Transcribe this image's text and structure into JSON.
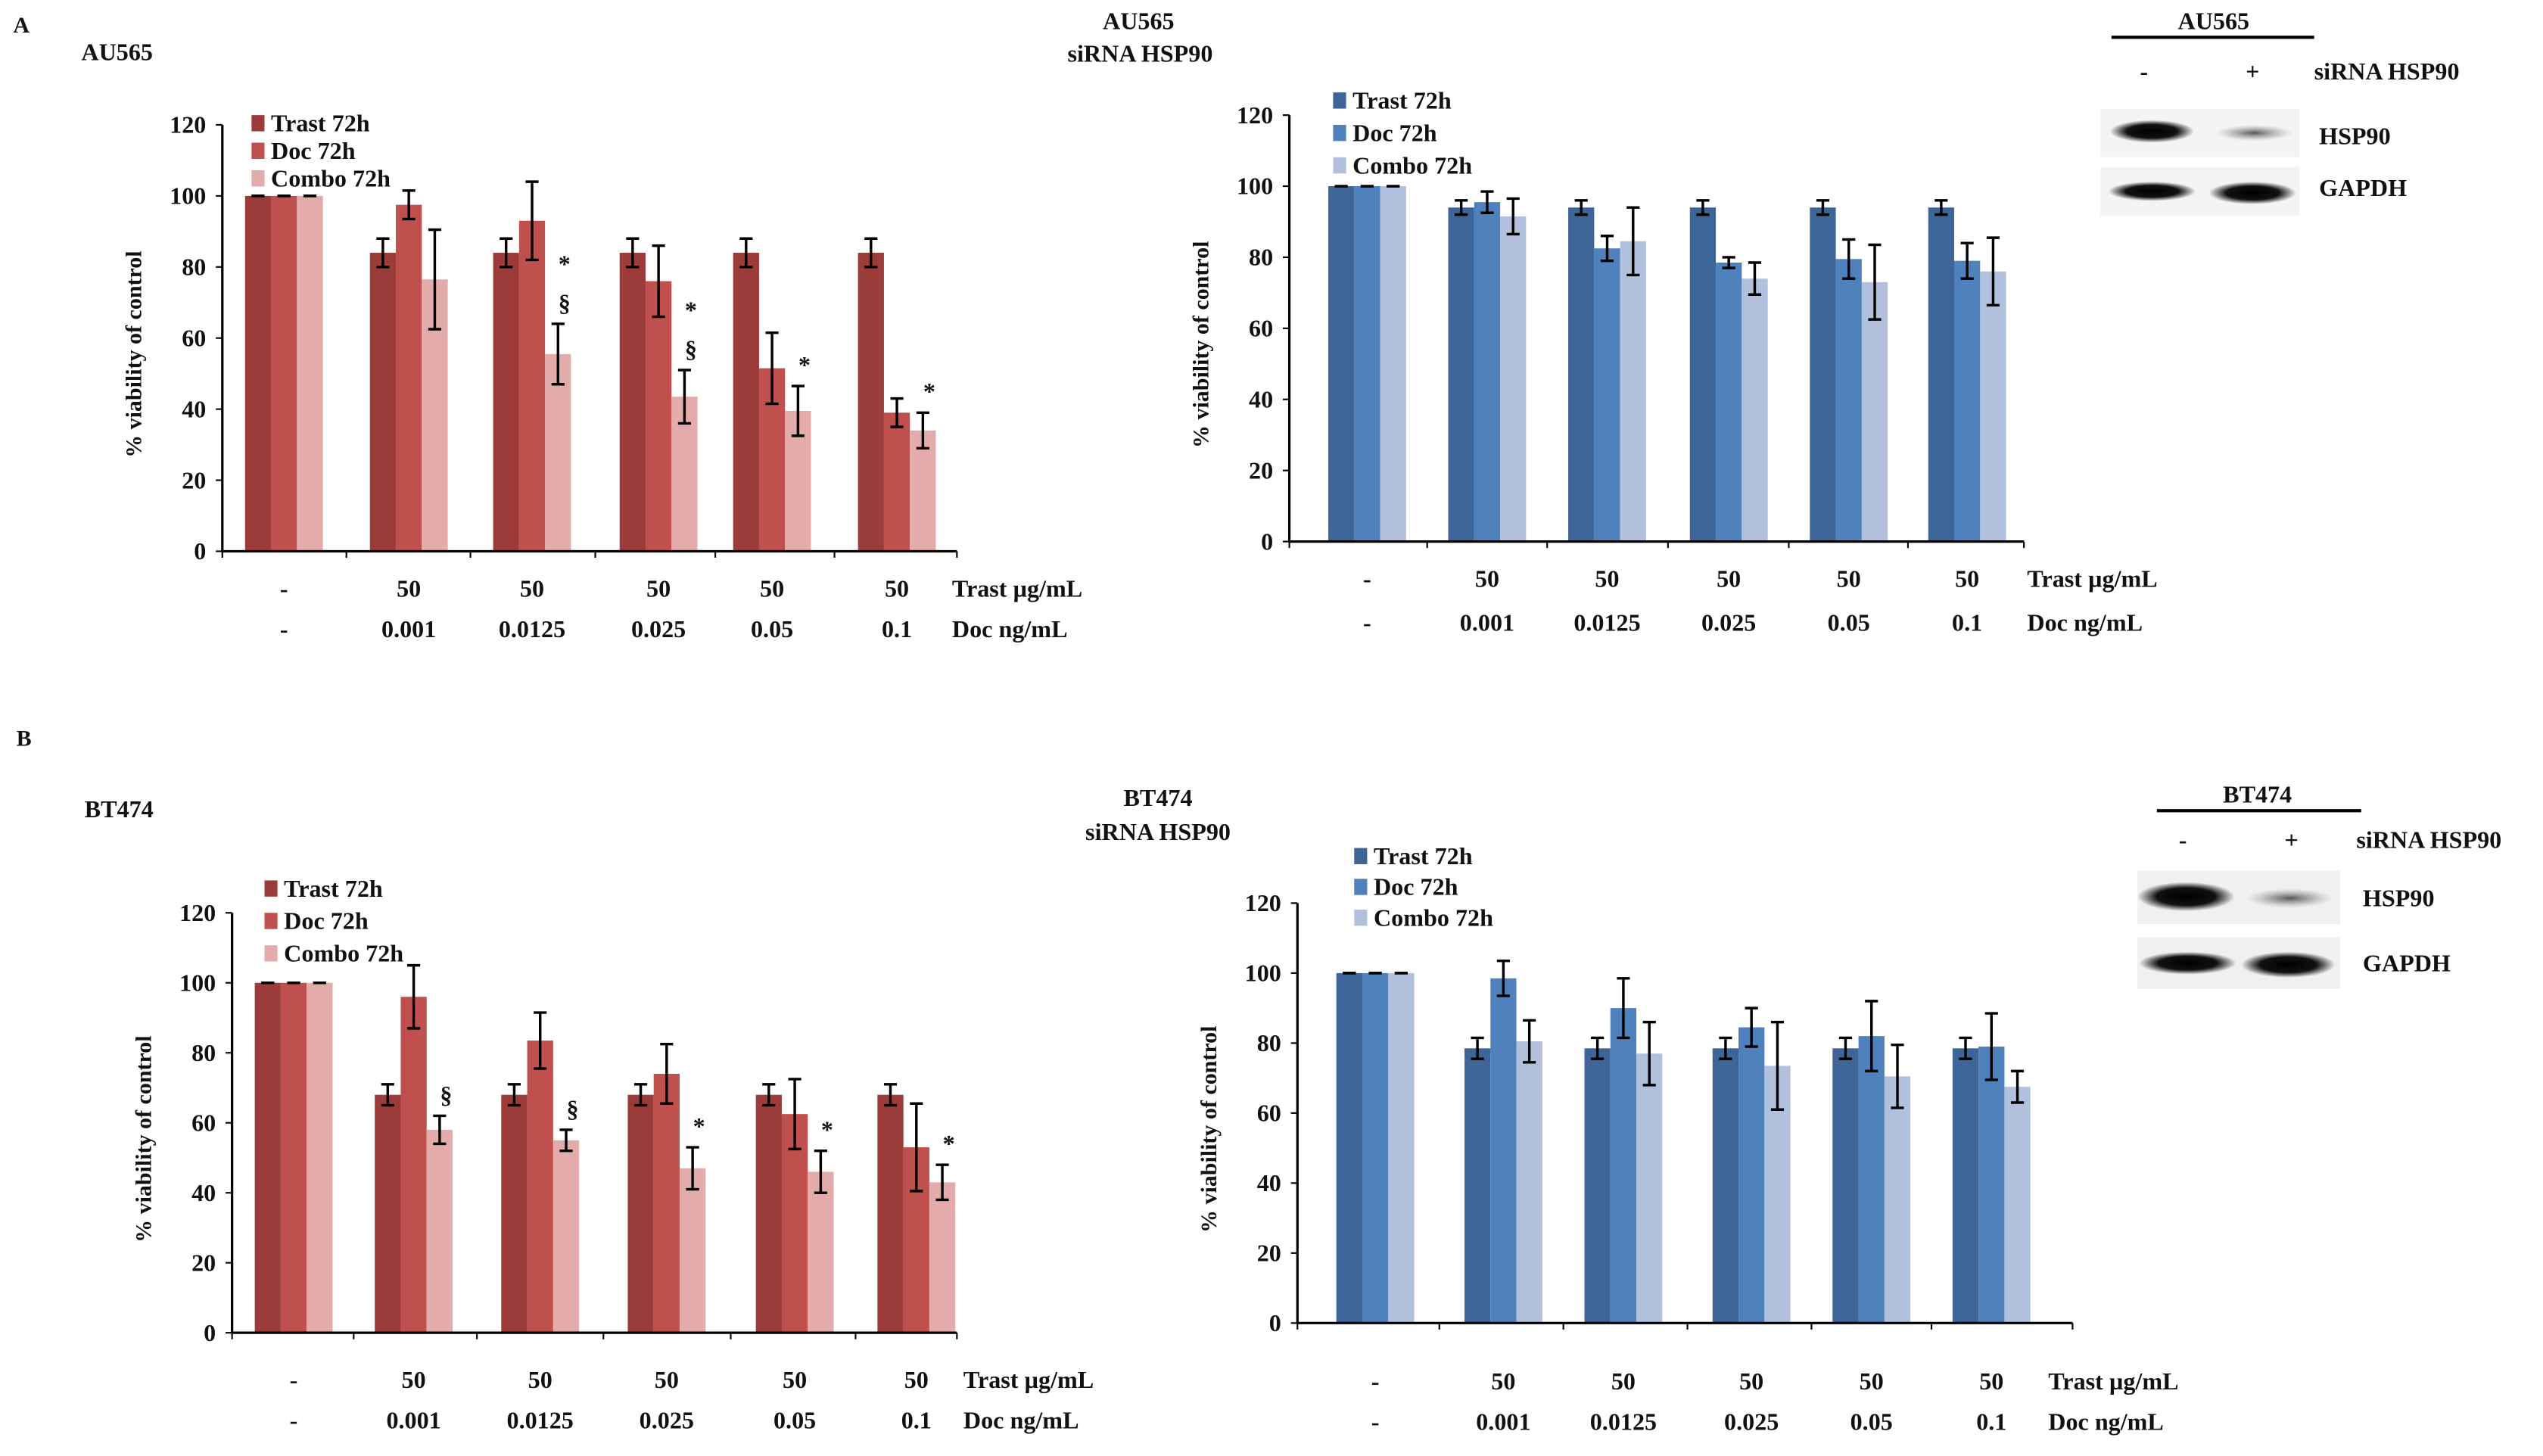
{
  "panels": {
    "A": {
      "letter": "A",
      "cell_line": "AU565",
      "center_title_1": "AU565",
      "center_title_2": "siRNA HSP90"
    },
    "B": {
      "letter": "B",
      "cell_line": "BT474",
      "center_title_1": "BT474",
      "center_title_2": "siRNA HSP90"
    }
  },
  "blots": [
    {
      "header": "AU565",
      "minus": "-",
      "plus": "+",
      "condition": "siRNA HSP90",
      "bands": [
        "HSP90",
        "GAPDH"
      ]
    },
    {
      "header": "BT474",
      "minus": "-",
      "plus": "+",
      "condition": "siRNA HSP90",
      "bands": [
        "HSP90",
        "GAPDH"
      ]
    }
  ],
  "colors": {
    "red": [
      "#9c3c3a",
      "#c0504d",
      "#e3abaa"
    ],
    "blue": [
      "#3e6597",
      "#4f81bd",
      "#b0c0dd"
    ]
  },
  "chart_data": [
    {
      "type": "bar",
      "id": "A-control",
      "palette": "red",
      "ylabel": "% viability of control",
      "ylim": [
        0,
        120
      ],
      "yticks": [
        0,
        20,
        40,
        60,
        80,
        100,
        120
      ],
      "row_labels": [
        "Trast µg/mL",
        "Doc ng/mL"
      ],
      "categories_trast": [
        "-",
        "50",
        "50",
        "50",
        "50",
        "50"
      ],
      "categories_doc": [
        "-",
        "0.001",
        "0.0125",
        "0.025",
        "0.05",
        "0.1"
      ],
      "series": [
        {
          "name": "Trast 72h",
          "values": [
            100,
            84,
            84,
            84,
            84,
            84
          ],
          "errors": [
            0,
            4,
            4,
            4,
            4,
            4
          ]
        },
        {
          "name": "Doc 72h",
          "values": [
            100,
            97.5,
            93,
            76,
            51.5,
            39
          ],
          "errors": [
            0,
            4,
            11,
            10,
            10,
            4
          ]
        },
        {
          "name": "Combo 72h",
          "values": [
            100,
            76.5,
            55.5,
            43.5,
            39.5,
            34
          ],
          "errors": [
            0,
            14,
            8.5,
            7.5,
            7,
            5
          ]
        }
      ],
      "annotations": [
        [],
        [],
        [
          "*",
          "§"
        ],
        [
          "*",
          "§"
        ],
        [
          "*"
        ],
        [
          "*"
        ]
      ]
    },
    {
      "type": "bar",
      "id": "A-siRNA",
      "palette": "blue",
      "ylabel": "% viability of control",
      "ylim": [
        0,
        120
      ],
      "yticks": [
        0,
        20,
        40,
        60,
        80,
        100,
        120
      ],
      "row_labels": [
        "Trast µg/mL",
        "Doc ng/mL"
      ],
      "categories_trast": [
        "-",
        "50",
        "50",
        "50",
        "50",
        "50"
      ],
      "categories_doc": [
        "-",
        "0.001",
        "0.0125",
        "0.025",
        "0.05",
        "0.1"
      ],
      "series": [
        {
          "name": "Trast 72h",
          "values": [
            100,
            94,
            94,
            94,
            94,
            94
          ],
          "errors": [
            0,
            2,
            2,
            2,
            2,
            2
          ]
        },
        {
          "name": "Doc 72h",
          "values": [
            100,
            95.5,
            82.5,
            78.5,
            79.5,
            79
          ],
          "errors": [
            0,
            3,
            3.5,
            1.5,
            5.5,
            5
          ]
        },
        {
          "name": "Combo 72h",
          "values": [
            100,
            91.5,
            84.5,
            74,
            73,
            76
          ],
          "errors": [
            0,
            5,
            9.5,
            4.5,
            10.5,
            9.5
          ]
        }
      ],
      "annotations": [
        [],
        [],
        [],
        [],
        [],
        []
      ]
    },
    {
      "type": "bar",
      "id": "B-control",
      "palette": "red",
      "ylabel": "% viability of control",
      "ylim": [
        0,
        120
      ],
      "yticks": [
        0,
        20,
        40,
        60,
        80,
        100,
        120
      ],
      "row_labels": [
        "Trast µg/mL",
        "Doc ng/mL"
      ],
      "categories_trast": [
        "-",
        "50",
        "50",
        "50",
        "50",
        "50"
      ],
      "categories_doc": [
        "-",
        "0.001",
        "0.0125",
        "0.025",
        "0.05",
        "0.1"
      ],
      "series": [
        {
          "name": "Trast 72h",
          "values": [
            100,
            68,
            68,
            68,
            68,
            68
          ],
          "errors": [
            0,
            3,
            3,
            3,
            3,
            3
          ]
        },
        {
          "name": "Doc 72h",
          "values": [
            100,
            96,
            83.5,
            74,
            62.5,
            53
          ],
          "errors": [
            0,
            9,
            8,
            8.5,
            10,
            12.5
          ]
        },
        {
          "name": "Combo 72h",
          "values": [
            100,
            58,
            55,
            47,
            46,
            43
          ],
          "errors": [
            0,
            4,
            3,
            6,
            6,
            5
          ]
        }
      ],
      "annotations": [
        [],
        [
          "§"
        ],
        [
          "§"
        ],
        [
          "*"
        ],
        [
          "*"
        ],
        [
          "*"
        ]
      ]
    },
    {
      "type": "bar",
      "id": "B-siRNA",
      "palette": "blue",
      "ylabel": "% viability of control",
      "ylim": [
        0,
        120
      ],
      "yticks": [
        0,
        20,
        40,
        60,
        80,
        100,
        120
      ],
      "row_labels": [
        "Trast µg/mL",
        "Doc ng/mL"
      ],
      "categories_trast": [
        "-",
        "50",
        "50",
        "50",
        "50",
        "50"
      ],
      "categories_doc": [
        "-",
        "0.001",
        "0.0125",
        "0.025",
        "0.05",
        "0.1"
      ],
      "series": [
        {
          "name": "Trast 72h",
          "values": [
            100,
            78.5,
            78.5,
            78.5,
            78.5,
            78.5
          ],
          "errors": [
            0,
            3,
            3,
            3,
            3,
            3
          ]
        },
        {
          "name": "Doc 72h",
          "values": [
            100,
            98.5,
            90,
            84.5,
            82,
            79
          ],
          "errors": [
            0,
            5,
            8.5,
            5.5,
            10,
            9.5
          ]
        },
        {
          "name": "Combo 72h",
          "values": [
            100,
            80.5,
            77,
            73.5,
            70.5,
            67.5
          ],
          "errors": [
            0,
            6,
            9,
            12.5,
            9,
            4.5
          ]
        }
      ],
      "annotations": [
        [],
        [],
        [],
        [],
        [],
        []
      ]
    }
  ]
}
